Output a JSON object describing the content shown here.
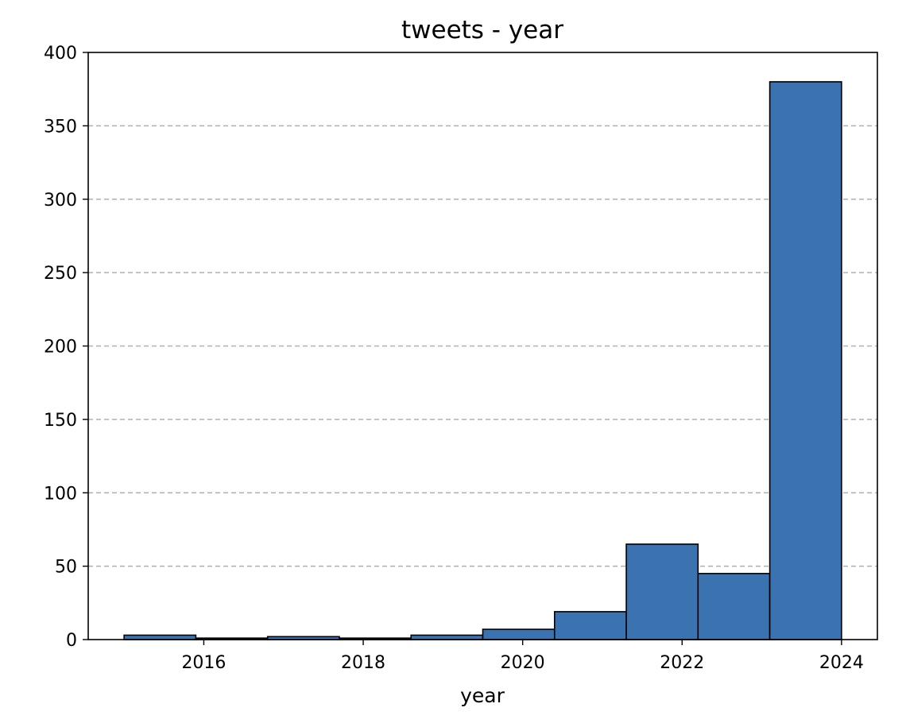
{
  "chart_data": {
    "type": "bar",
    "title": "tweets - year",
    "xlabel": "year",
    "ylabel": "",
    "xlim": [
      2014.55,
      2024.45
    ],
    "ylim": [
      0,
      400
    ],
    "x_ticks": [
      2016,
      2018,
      2020,
      2022,
      2024
    ],
    "y_ticks": [
      0,
      50,
      100,
      150,
      200,
      250,
      300,
      350,
      400
    ],
    "grid": {
      "y": true,
      "x": false,
      "style": "dashed"
    },
    "bar_color": "#3a73b0",
    "edge_color": "#000000",
    "bins": [
      {
        "x0": 2015.0,
        "x1": 2015.9,
        "count": 3
      },
      {
        "x0": 2015.9,
        "x1": 2016.8,
        "count": 1
      },
      {
        "x0": 2016.8,
        "x1": 2017.7,
        "count": 2
      },
      {
        "x0": 2017.7,
        "x1": 2018.6,
        "count": 1
      },
      {
        "x0": 2018.6,
        "x1": 2019.5,
        "count": 3
      },
      {
        "x0": 2019.5,
        "x1": 2020.4,
        "count": 7
      },
      {
        "x0": 2020.4,
        "x1": 2021.3,
        "count": 19
      },
      {
        "x0": 2021.3,
        "x1": 2022.2,
        "count": 65
      },
      {
        "x0": 2022.2,
        "x1": 2023.1,
        "count": 45
      },
      {
        "x0": 2023.1,
        "x1": 2024.0,
        "count": 380
      }
    ]
  }
}
